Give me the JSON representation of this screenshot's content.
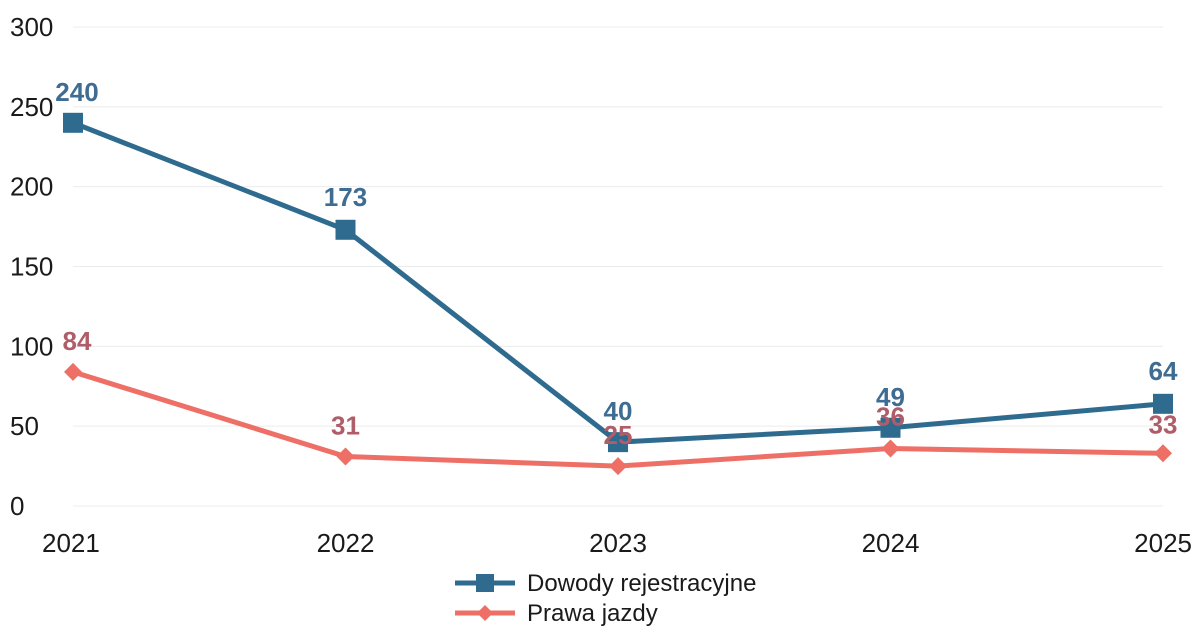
{
  "chart_data": {
    "type": "line",
    "x": [
      "2021",
      "2022",
      "2023",
      "2024",
      "2025"
    ],
    "ylim": [
      0,
      300
    ],
    "yticks": [
      "0",
      "50",
      "100",
      "150",
      "200",
      "250",
      "300"
    ],
    "grid": true,
    "legend_position": "bottom",
    "series": [
      {
        "name": "Dowody rejestracyjne",
        "values": [
          240,
          173,
          40,
          49,
          64
        ],
        "labels": [
          "240",
          "173",
          "40",
          "49",
          "64"
        ],
        "color": "#2e6b8f",
        "label_color": "#3f6c92",
        "marker": "square"
      },
      {
        "name": "Prawa jazdy",
        "values": [
          84,
          31,
          25,
          36,
          33
        ],
        "labels": [
          "84",
          "31",
          "25",
          "36",
          "33"
        ],
        "color": "#ee6f66",
        "label_color": "#b05d6a",
        "marker": "diamond"
      }
    ]
  }
}
